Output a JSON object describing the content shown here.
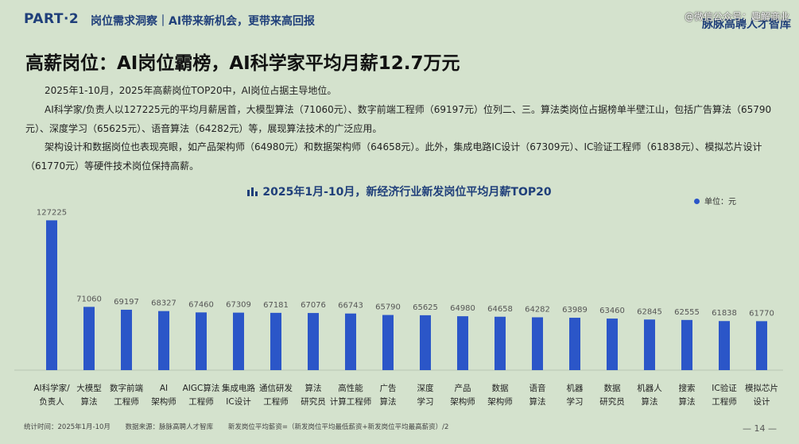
{
  "header": {
    "part": "PART·2",
    "section": "岗位需求洞察｜AI带来新机会，更带来高回报",
    "watermark": "@微信公众号：趣解商业",
    "brand": "脉脉高聘人才智库"
  },
  "headline": "高薪岗位：AI岗位霸榜，AI科学家平均月薪12.7万元",
  "paragraphs": [
    "2025年1-10月，2025年高薪岗位TOP20中，AI岗位占据主导地位。",
    "AI科学家/负责人以127225元的平均月薪居首，大模型算法（71060元）、数字前端工程师（69197元）位列二、三。算法类岗位占据榜单半壁江山，包括广告算法（65790元）、深度学习（65625元）、语音算法（64282元）等，展现算法技术的广泛应用。",
    "架构设计和数据岗位也表现亮眼，如产品架构师（64980元）和数据架构师（64658元）。此外，集成电路IC设计（67309元）、IC验证工程师（61838元）、模拟芯片设计（61770元）等硬件技术岗位保持高薪。"
  ],
  "chart_data": {
    "type": "bar",
    "title": "2025年1月-10月，新经济行业新发岗位平均月薪TOP20",
    "legend": "单位：元",
    "legend_position": "top-right",
    "color": "#2b56c8",
    "categories": [
      [
        "AI科学家/",
        "负责人"
      ],
      [
        "大模型",
        "算法"
      ],
      [
        "数字前端",
        "工程师"
      ],
      [
        "AI",
        "架构师"
      ],
      [
        "AIGC算法",
        "工程师"
      ],
      [
        "集成电路",
        "IC设计"
      ],
      [
        "通信研发",
        "工程师"
      ],
      [
        "算法",
        "研究员"
      ],
      [
        "高性能",
        "计算工程师"
      ],
      [
        "广告",
        "算法"
      ],
      [
        "深度",
        "学习"
      ],
      [
        "产品",
        "架构师"
      ],
      [
        "数据",
        "架构师"
      ],
      [
        "语音",
        "算法"
      ],
      [
        "机器",
        "学习"
      ],
      [
        "数据",
        "研究员"
      ],
      [
        "机器人",
        "算法"
      ],
      [
        "搜索",
        "算法"
      ],
      [
        "IC验证",
        "工程师"
      ],
      [
        "模拟芯片",
        "设计"
      ]
    ],
    "values": [
      127225,
      71060,
      69197,
      68327,
      67460,
      67309,
      67181,
      67076,
      66743,
      65790,
      65625,
      64980,
      64658,
      64282,
      63989,
      63460,
      62845,
      62555,
      61838,
      61770
    ],
    "ylim": [
      30000,
      130000
    ],
    "grid": false
  },
  "footer": {
    "period": "统计时间：2025年1月-10月",
    "source": "数据来源：脉脉高聘人才智库",
    "formula": "新发岗位平均薪资=（新发岗位平均最低薪资+新发岗位平均最高薪资）/2",
    "page": "— 14 —"
  }
}
